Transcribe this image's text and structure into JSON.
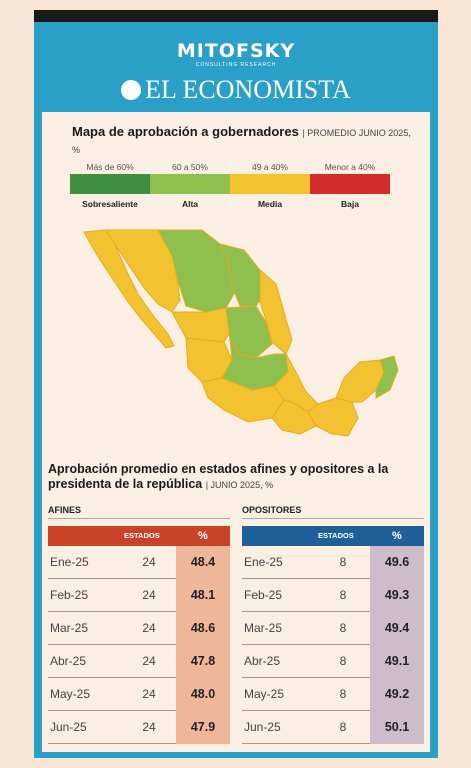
{
  "header": {
    "brand1": "MITOFSKY",
    "brand1_sub": "CONSULTING RESEARCH",
    "brand2": "EL ECONOMISTA"
  },
  "map_section": {
    "title": "Mapa de aprobación a gobernadores",
    "subtitle": "PROMEDIO JUNIO 2025, %"
  },
  "legend": [
    {
      "range": "Más de 60%",
      "name": "Sobresaliente",
      "color": "#3f8f3f"
    },
    {
      "range": "60 a 50%",
      "name": "Alta",
      "color": "#8fbf4f"
    },
    {
      "range": "49 a 40%",
      "name": "Media",
      "color": "#f2c230"
    },
    {
      "range": "Menor a 40%",
      "name": "Baja",
      "color": "#d42b2b"
    }
  ],
  "map_colors": {
    "alta": "#8fbf4f",
    "media": "#f2c230",
    "border": "#e3ad1c"
  },
  "table_section": {
    "title": "Aprobación promedio en estados afines y opositores a la presidenta de la república",
    "subtitle": "JUNIO 2025, %"
  },
  "chart_data": {
    "type": "table",
    "columns": [
      "ESTADOS",
      "%"
    ],
    "afines": {
      "label": "AFINES",
      "header_color": "#c9432a",
      "value_bg": "#efb79a",
      "rows": [
        {
          "month": "Ene-25",
          "estados": "24",
          "pct": "48.4"
        },
        {
          "month": "Feb-25",
          "estados": "24",
          "pct": "48.1"
        },
        {
          "month": "Mar-25",
          "estados": "24",
          "pct": "48.6"
        },
        {
          "month": "Abr-25",
          "estados": "24",
          "pct": "47.8"
        },
        {
          "month": "May-25",
          "estados": "24",
          "pct": "48.0"
        },
        {
          "month": "Jun-25",
          "estados": "24",
          "pct": "47.9"
        }
      ]
    },
    "opositores": {
      "label": "OPOSITORES",
      "header_color": "#1f5f9a",
      "value_bg": "#cdbdcb",
      "rows": [
        {
          "month": "Ene-25",
          "estados": "8",
          "pct": "49.6"
        },
        {
          "month": "Feb-25",
          "estados": "8",
          "pct": "49.3"
        },
        {
          "month": "Mar-25",
          "estados": "8",
          "pct": "49.4"
        },
        {
          "month": "Abr-25",
          "estados": "8",
          "pct": "49.1"
        },
        {
          "month": "May-25",
          "estados": "8",
          "pct": "49.2"
        },
        {
          "month": "Jun-25",
          "estados": "8",
          "pct": "50.1"
        }
      ]
    }
  }
}
